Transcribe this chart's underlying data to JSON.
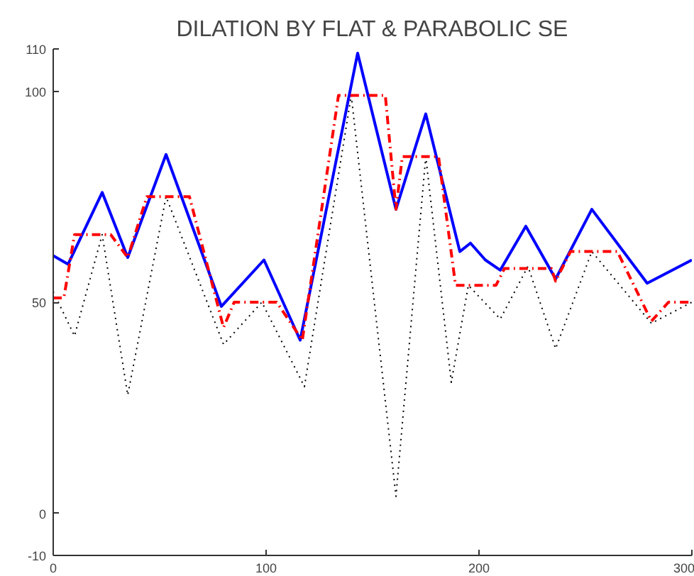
{
  "chart_data": {
    "type": "line",
    "title": "DILATION BY FLAT & PARABOLIC SE",
    "xlim": [
      0,
      300
    ],
    "ylim": [
      -10,
      110
    ],
    "xticks": [
      0,
      100,
      200,
      300
    ],
    "yticks": [
      -10,
      0,
      50,
      100,
      110
    ],
    "series": [
      {
        "color": "#000000",
        "line_style": "dotted",
        "x": [
          0,
          10,
          23,
          35,
          53,
          80,
          98,
          118,
          140,
          161,
          175,
          187,
          195,
          210,
          223,
          236,
          253,
          281,
          300
        ],
        "values": [
          52.5,
          42,
          66,
          28,
          75,
          40,
          50,
          30,
          99,
          4,
          84.5,
          31,
          54,
          46,
          58.5,
          39,
          62,
          45,
          50
        ]
      },
      {
        "color": "#0000ff",
        "line_style": "solid",
        "x": [
          0,
          7,
          23,
          35,
          53,
          79,
          99,
          116,
          143,
          161,
          175,
          191,
          196,
          203,
          210,
          222,
          236,
          253,
          279,
          300
        ],
        "values": [
          61,
          59,
          76,
          60.6,
          85,
          49,
          60,
          41,
          109,
          72,
          94.6,
          62,
          64,
          60,
          57.6,
          68,
          55.5,
          72,
          54.5,
          60
        ]
      },
      {
        "color": "#ff0000",
        "line_style": "dashdot",
        "x": [
          0,
          5,
          10,
          27,
          35,
          44,
          64,
          80,
          85,
          105,
          117,
          134,
          156,
          161,
          164,
          181,
          189,
          208,
          212,
          234,
          236,
          243,
          265,
          281,
          289,
          300
        ],
        "values": [
          51,
          51,
          66,
          66,
          60.6,
          75,
          75,
          44,
          50,
          50,
          41,
          99,
          99,
          72,
          84.5,
          84.5,
          54,
          54,
          58,
          58,
          55,
          62,
          62,
          45.5,
          50,
          50
        ]
      }
    ]
  }
}
